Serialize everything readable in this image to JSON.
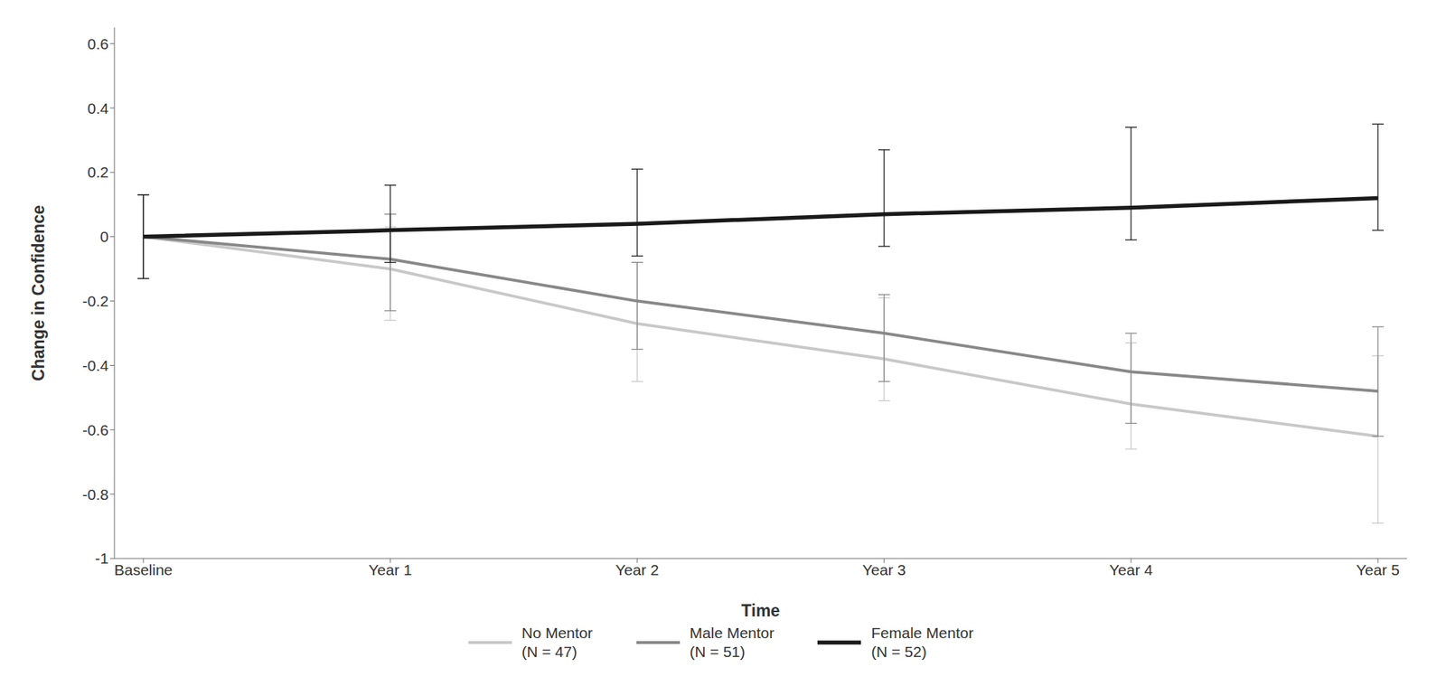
{
  "chart_data": {
    "type": "line",
    "categories": [
      "Baseline",
      "Year 1",
      "Year 2",
      "Year 3",
      "Year 4",
      "Year 5"
    ],
    "xlabel": "Time",
    "ylabel": "Change in Confidence",
    "ylim": [
      -1.0,
      0.65
    ],
    "yticks": [
      -1.0,
      -0.8,
      -0.6,
      -0.4,
      -0.2,
      0.0,
      0.2,
      0.4,
      0.6
    ],
    "grid": false,
    "legend": "bottom",
    "series": [
      {
        "name": "No Mentor\n(N = 47)",
        "color": "#c8c8c8",
        "values": [
          0.0,
          -0.1,
          -0.27,
          -0.38,
          -0.52,
          -0.62
        ],
        "error_lower": [
          0.13,
          0.16,
          0.18,
          0.13,
          0.14,
          0.27
        ],
        "error_upper": [
          0.13,
          0.13,
          0.19,
          0.19,
          0.19,
          0.25
        ]
      },
      {
        "name": "Male Mentor\n(N = 51)",
        "color": "#888888",
        "values": [
          0.0,
          -0.07,
          -0.2,
          -0.3,
          -0.42,
          -0.48
        ],
        "error_lower": [
          0.13,
          0.16,
          0.15,
          0.15,
          0.16,
          0.14
        ],
        "error_upper": [
          0.13,
          0.14,
          0.12,
          0.12,
          0.12,
          0.2
        ]
      },
      {
        "name": "Female Mentor\n(N = 52)",
        "color": "#1a1a1a",
        "values": [
          0.0,
          0.02,
          0.04,
          0.07,
          0.09,
          0.12
        ],
        "error_lower": [
          0.13,
          0.1,
          0.1,
          0.1,
          0.1,
          0.1
        ],
        "error_upper": [
          0.13,
          0.14,
          0.17,
          0.2,
          0.25,
          0.23
        ]
      }
    ]
  }
}
